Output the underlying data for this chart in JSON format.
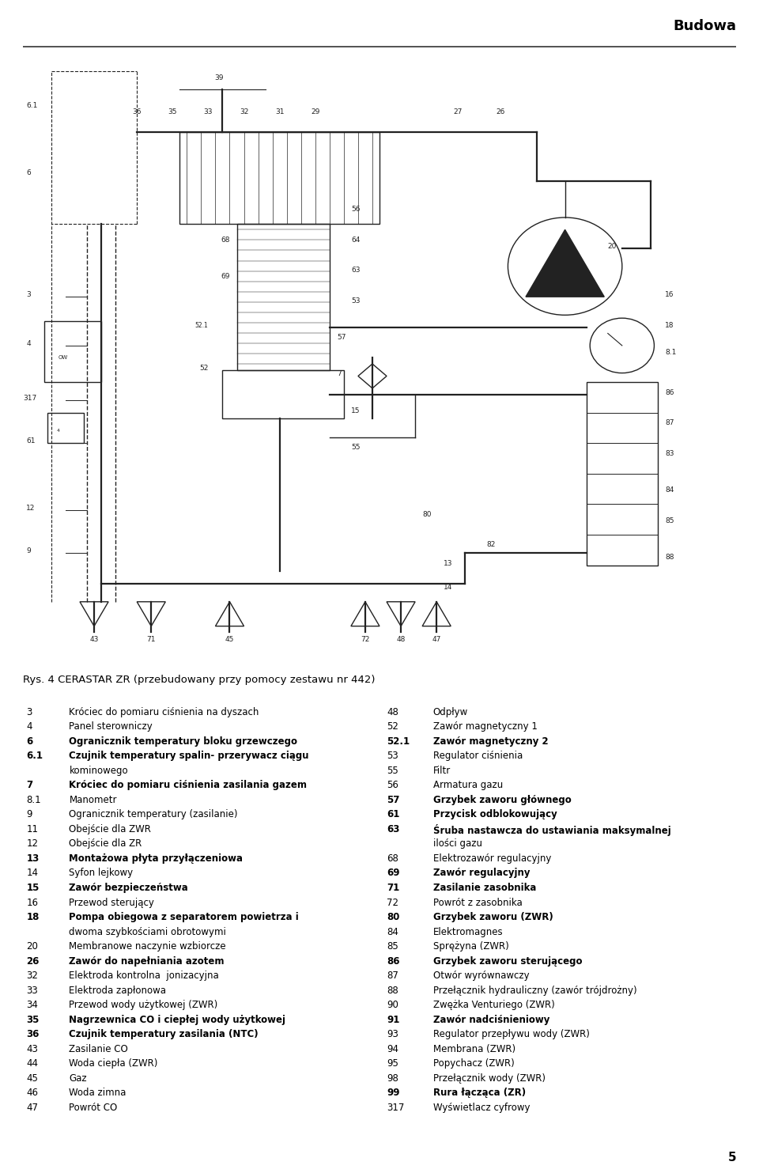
{
  "title": "Budowa",
  "page_number": "5",
  "figure_caption": "Rys. 4 CERASTAR ZR (przebudowany przy pomocy zestawu nr 442)",
  "left_items": [
    [
      "3",
      "Króciec do pomiaru ciśnienia na dyszach"
    ],
    [
      "4",
      "Panel sterowniczy"
    ],
    [
      "6",
      "Ogranicznik temperatury bloku grzewczego"
    ],
    [
      "6.1",
      "Czujnik temperatury spalin- przerywacz ciągu",
      "kominowego"
    ],
    [
      "7",
      "Króciec do pomiaru ciśnienia zasilania gazem"
    ],
    [
      "8.1",
      "Manometr"
    ],
    [
      "9",
      "Ogranicznik temperatury (zasilanie)"
    ],
    [
      "11",
      "Obejście dla ZWR"
    ],
    [
      "12",
      "Obejście dla ZR"
    ],
    [
      "13",
      "Montażowa płyta przyłączeniowa"
    ],
    [
      "14",
      "Syfon lejkowy"
    ],
    [
      "15",
      "Zawór bezpieczeństwa"
    ],
    [
      "16",
      "Przewod sterujący"
    ],
    [
      "18",
      "Pompa obiegowa z separatorem powietrza i",
      "dwoma szybkościami obrotowymi"
    ],
    [
      "20",
      "Membranowe naczynie wzbiorcze"
    ],
    [
      "26",
      "Zawór do napełniania azotem"
    ],
    [
      "32",
      "Elektroda kontrolna  jonizacyjna"
    ],
    [
      "33",
      "Elektroda zapłonowa"
    ],
    [
      "34",
      "Przewod wody użytkowej (ZWR)"
    ],
    [
      "35",
      "Nagrzewnica CO i ciepłej wody użytkowej"
    ],
    [
      "36",
      "Czujnik temperatury zasilania (NTC)"
    ],
    [
      "43",
      "Zasilanie CO"
    ],
    [
      "44",
      "Woda ciepła (ZWR)"
    ],
    [
      "45",
      "Gaz"
    ],
    [
      "46",
      "Woda zimna"
    ],
    [
      "47",
      "Powrót CO"
    ]
  ],
  "right_items": [
    [
      "48",
      "Odpływ"
    ],
    [
      "52",
      "Zawór magnetyczny 1"
    ],
    [
      "52.1",
      "Zawór magnetyczny 2"
    ],
    [
      "53",
      "Regulator ciśnienia"
    ],
    [
      "55",
      "Filtr"
    ],
    [
      "56",
      "Armatura gazu"
    ],
    [
      "57",
      "Grzybek zaworu głównego"
    ],
    [
      "61",
      "Przycisk odblokowujący"
    ],
    [
      "63",
      "Śruba nastawcza do ustawiania maksymalnej",
      "ilości gazu"
    ],
    [
      "68",
      "Elektrozawór regulacyjny"
    ],
    [
      "69",
      "Zawór regulacyjny"
    ],
    [
      "71",
      "Zasilanie zasobnika"
    ],
    [
      "72",
      "Powrót z zasobnika"
    ],
    [
      "80",
      "Grzybek zaworu (ZWR)"
    ],
    [
      "84",
      "Elektromagnes"
    ],
    [
      "85",
      "Sprężyna (ZWR)"
    ],
    [
      "86",
      "Grzybek zaworu sterującego"
    ],
    [
      "87",
      "Otwór wyrównawczy"
    ],
    [
      "88",
      "Przełącznik hydrauliczny (zawór trójdrożny)"
    ],
    [
      "90",
      "Zwężka Venturiego (ZWR)"
    ],
    [
      "91",
      "Zawór nadciśnieniowy"
    ],
    [
      "93",
      "Regulator przepływu wody (ZWR)"
    ],
    [
      "94",
      "Membrana (ZWR)"
    ],
    [
      "95",
      "Popychacz (ZWR)"
    ],
    [
      "98",
      "Przełącznik wody (ZWR)"
    ],
    [
      "99",
      "Rura łącząca (ZR)"
    ],
    [
      "317",
      "Wyświetlacz cyfrowy"
    ]
  ],
  "bold_left": [
    "6",
    "6.1",
    "7",
    "13",
    "15",
    "18",
    "26",
    "35",
    "36"
  ],
  "bold_right": [
    "52.1",
    "57",
    "61",
    "63",
    "69",
    "71",
    "80",
    "86",
    "91",
    "99"
  ],
  "bg_color": "#ffffff",
  "text_color": "#000000",
  "font_size_body": 8.5,
  "font_size_title": 13
}
